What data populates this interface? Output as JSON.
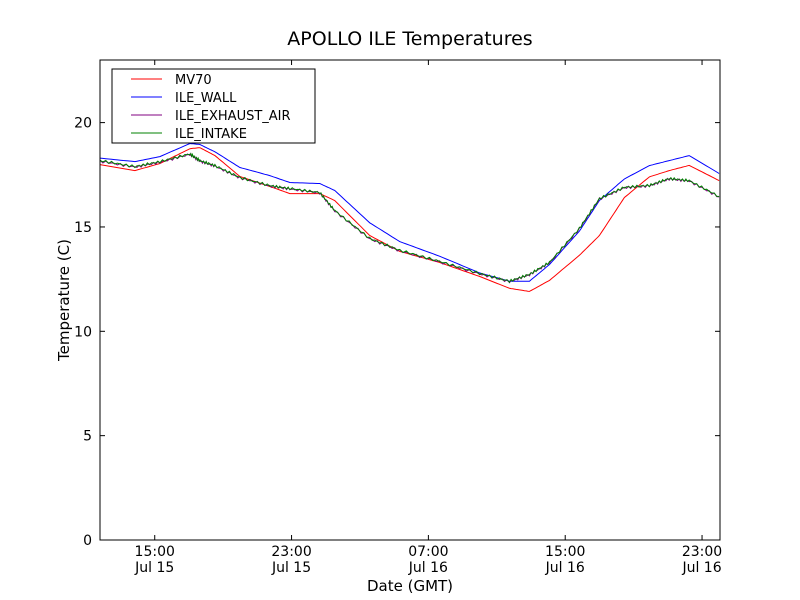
{
  "chart_data": {
    "type": "line",
    "title": "APOLLO ILE Temperatures",
    "xlabel": "Date (GMT)",
    "ylabel": "Temperature (C)",
    "x_units": "hours since Jul 15 00:00 GMT",
    "xlim": [
      11.8,
      48.05
    ],
    "ylim": [
      0,
      23
    ],
    "grid": false,
    "legend_position": "top-left",
    "yticks": [
      0,
      5,
      10,
      15,
      20
    ],
    "xticks": [
      {
        "value": 15,
        "time": "15:00",
        "date": "Jul 15"
      },
      {
        "value": 23,
        "time": "23:00",
        "date": "Jul 15"
      },
      {
        "value": 31,
        "time": "07:00",
        "date": "Jul 16"
      },
      {
        "value": 39,
        "time": "15:00",
        "date": "Jul 16"
      },
      {
        "value": 47,
        "time": "23:00",
        "date": "Jul 16"
      }
    ],
    "x": [
      11.8,
      13.84,
      15.3,
      17.06,
      17.64,
      18.52,
      19.98,
      21.73,
      22.9,
      24.65,
      25.52,
      27.57,
      29.32,
      31.65,
      33.99,
      35.74,
      36.91,
      38.08,
      39.83,
      41.0,
      42.46,
      43.92,
      45.08,
      46.25,
      48.0
    ],
    "series": [
      {
        "name": "MV70",
        "color": "#ff0000",
        "values": [
          17.99,
          17.7,
          18.04,
          18.75,
          18.8,
          18.42,
          17.42,
          16.94,
          16.6,
          16.6,
          16.27,
          14.59,
          13.83,
          13.3,
          12.63,
          12.06,
          11.91,
          12.44,
          13.64,
          14.59,
          16.41,
          17.4,
          17.7,
          17.95,
          17.22
        ]
      },
      {
        "name": "ILE_WALL",
        "color": "#0000ff",
        "values": [
          18.3,
          18.13,
          18.37,
          19.0,
          18.95,
          18.6,
          17.85,
          17.46,
          17.13,
          17.08,
          16.75,
          15.2,
          14.3,
          13.6,
          12.8,
          12.4,
          12.4,
          13.2,
          14.8,
          16.27,
          17.3,
          17.94,
          18.18,
          18.42,
          17.56
        ]
      },
      {
        "name": "ILE_EXHAUST_AIR",
        "color": "#800080",
        "values": [
          18.15,
          17.87,
          18.1,
          18.48,
          18.15,
          17.92,
          17.35,
          16.96,
          16.82,
          16.63,
          15.77,
          14.43,
          13.86,
          13.33,
          12.75,
          12.38,
          12.71,
          13.28,
          14.91,
          16.34,
          16.88,
          16.97,
          17.3,
          17.2,
          16.44
        ]
      },
      {
        "name": "ILE_INTAKE",
        "color": "#008000",
        "values": [
          18.18,
          17.89,
          18.13,
          18.5,
          18.18,
          17.94,
          17.37,
          16.98,
          16.84,
          16.65,
          15.79,
          14.45,
          13.88,
          13.35,
          12.77,
          12.4,
          12.73,
          13.3,
          14.93,
          16.36,
          16.9,
          16.99,
          17.32,
          17.22,
          16.46
        ]
      }
    ]
  }
}
